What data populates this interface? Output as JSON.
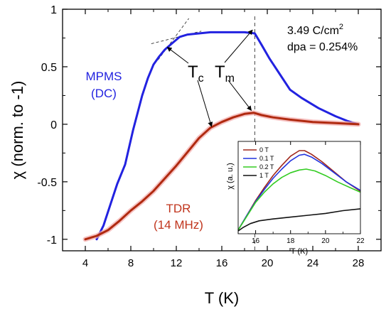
{
  "chart_data": [
    {
      "type": "line",
      "title": "",
      "xlabel": "T (K)",
      "ylabel": "χ (norm. to -1)",
      "xlim": [
        2,
        30
      ],
      "ylim": [
        -1.1,
        1.0
      ],
      "xticks": [
        4,
        8,
        12,
        16,
        20,
        24,
        28
      ],
      "xtick_labels": [
        "4",
        "8",
        "12",
        "16",
        "20",
        "24",
        "28"
      ],
      "yticks": [
        -1,
        -0.5,
        0,
        0.5,
        1
      ],
      "ytick_labels": [
        "-1",
        "-0.5",
        "0",
        "0.5",
        "1"
      ],
      "grid": false,
      "series": [
        {
          "key": "mpms",
          "color": "#2222e0",
          "x": [
            5.0,
            5.6,
            6.2,
            6.8,
            7.5,
            8.2,
            8.6,
            9.0,
            9.5,
            10.0,
            10.5,
            11.0,
            11.7,
            12.3,
            13.0,
            14.0,
            15.0,
            16.0,
            17.0,
            18.0,
            18.9,
            19.5,
            20.2,
            21.0,
            22.0,
            23.0,
            24.5,
            26.0,
            27.0,
            28.0
          ],
          "y": [
            -1.0,
            -0.88,
            -0.7,
            -0.52,
            -0.35,
            -0.05,
            0.1,
            0.25,
            0.4,
            0.52,
            0.59,
            0.65,
            0.71,
            0.76,
            0.78,
            0.79,
            0.8,
            0.8,
            0.8,
            0.8,
            0.79,
            0.69,
            0.57,
            0.45,
            0.3,
            0.23,
            0.14,
            0.07,
            0.03,
            0.0
          ]
        },
        {
          "key": "tdr",
          "color": "#b02a10",
          "x": [
            4.0,
            5.0,
            6.0,
            7.0,
            8.0,
            9.0,
            10.0,
            11.0,
            12.0,
            13.0,
            14.0,
            15.0,
            16.0,
            17.0,
            18.0,
            18.8,
            19.5,
            20.5,
            22.0,
            24.0,
            26.0,
            28.0
          ],
          "y": [
            -1.0,
            -0.97,
            -0.92,
            -0.84,
            -0.75,
            -0.67,
            -0.58,
            -0.47,
            -0.36,
            -0.24,
            -0.12,
            -0.03,
            0.02,
            0.06,
            0.09,
            0.1,
            0.08,
            0.06,
            0.04,
            0.02,
            0.01,
            0.0
          ]
        }
      ],
      "guides": {
        "tc_tangent_1": [
          [
            10.4,
            0.56
          ],
          [
            13.1,
            0.92
          ]
        ],
        "tc_tangent_2": [
          [
            9.8,
            0.7
          ],
          [
            14.2,
            0.81
          ]
        ],
        "tm_dashed_x": 18.9
      },
      "annotations": {
        "mpms_label_line1": "MPMS",
        "mpms_label_line2": "(DC)",
        "tdr_label_line1": "TDR",
        "tdr_label_line2": "(14 MHz)",
        "tc_label": "T",
        "tc_sub": "c",
        "tm_label": "T",
        "tm_sub": "m",
        "dose_line1": "3.49 C/cm",
        "dose_sup": "2",
        "dose_line2": "dpa = 0.254%"
      }
    },
    {
      "type": "line",
      "title": "",
      "xlabel": "T (K)",
      "ylabel": "χ (a. u.)",
      "xlim": [
        15,
        22
      ],
      "ylim": [
        0,
        1
      ],
      "xticks": [
        16,
        18,
        20,
        22
      ],
      "xtick_labels": [
        "16",
        "18",
        "20",
        "22"
      ],
      "legend_position": "top-left",
      "grid": false,
      "series": [
        {
          "name": "0 T",
          "color": "#a0281c",
          "x": [
            15.0,
            15.5,
            16.0,
            16.5,
            17.0,
            17.5,
            18.0,
            18.5,
            18.8,
            19.2,
            19.8,
            20.5,
            21.2,
            22.0
          ],
          "y": [
            0.04,
            0.2,
            0.36,
            0.5,
            0.63,
            0.74,
            0.84,
            0.9,
            0.9,
            0.86,
            0.78,
            0.67,
            0.56,
            0.46
          ]
        },
        {
          "name": "0.1 T",
          "color": "#2233dd",
          "x": [
            15.0,
            15.5,
            16.0,
            16.5,
            17.0,
            17.5,
            18.0,
            18.5,
            18.8,
            19.2,
            19.8,
            20.5,
            21.2,
            22.0
          ],
          "y": [
            0.04,
            0.2,
            0.35,
            0.48,
            0.6,
            0.7,
            0.79,
            0.85,
            0.86,
            0.83,
            0.76,
            0.66,
            0.56,
            0.47
          ]
        },
        {
          "name": "0.2 T",
          "color": "#33cc22",
          "x": [
            15.0,
            15.5,
            16.0,
            16.5,
            17.0,
            17.5,
            18.0,
            18.5,
            18.9,
            19.4,
            20.0,
            20.7,
            21.4,
            22.0
          ],
          "y": [
            0.04,
            0.19,
            0.34,
            0.45,
            0.54,
            0.61,
            0.66,
            0.69,
            0.7,
            0.68,
            0.63,
            0.56,
            0.5,
            0.45
          ]
        },
        {
          "name": "1 T",
          "color": "#111111",
          "x": [
            15.0,
            15.3,
            15.7,
            16.2,
            17.0,
            18.0,
            19.0,
            20.0,
            21.0,
            22.0
          ],
          "y": [
            0.03,
            0.07,
            0.11,
            0.14,
            0.16,
            0.18,
            0.2,
            0.22,
            0.25,
            0.27
          ]
        }
      ]
    }
  ]
}
